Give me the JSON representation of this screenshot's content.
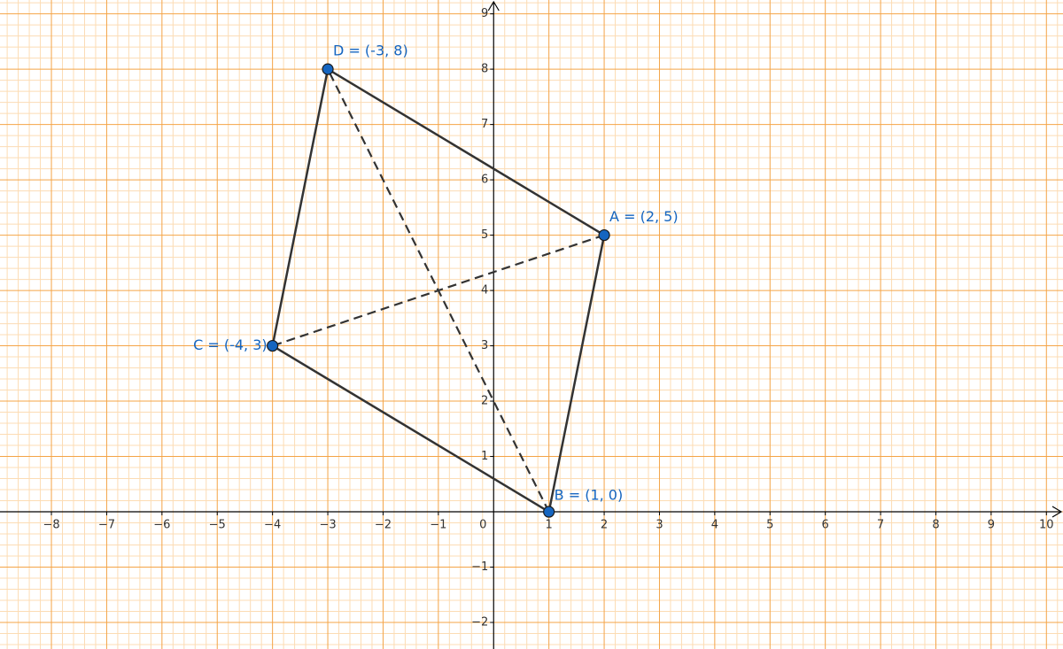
{
  "chart_data": {
    "type": "scatter",
    "xlim": [
      -8.93,
      10.3
    ],
    "ylim": [
      -2.48,
      9.25
    ],
    "xticks": [
      {
        "value": -8,
        "label": "−8"
      },
      {
        "value": -7,
        "label": "−7"
      },
      {
        "value": -6,
        "label": "−6"
      },
      {
        "value": -5,
        "label": "−5"
      },
      {
        "value": -4,
        "label": "−4"
      },
      {
        "value": -3,
        "label": "−3"
      },
      {
        "value": -2,
        "label": "−2"
      },
      {
        "value": -1,
        "label": "−1"
      },
      0,
      1,
      2,
      3,
      4,
      5,
      6,
      7,
      8,
      9,
      10
    ],
    "yticks": [
      {
        "value": -2,
        "label": "−2"
      },
      {
        "value": -1,
        "label": "−1"
      },
      1,
      2,
      3,
      4,
      5,
      6,
      7,
      8,
      9
    ],
    "grid": true,
    "grid_color": "#f4a447",
    "minor_grid_color": "#fcdcb4",
    "point_color": "#1565c0",
    "line_color": "#333333",
    "points": [
      {
        "label": "A = (2, 5)",
        "x": 2,
        "y": 5
      },
      {
        "label": "B = (1, 0)",
        "x": 1,
        "y": 0
      },
      {
        "label": "C = (-4, 3)",
        "x": -4,
        "y": 3
      },
      {
        "label": "D = (-3, 8)",
        "x": -3,
        "y": 8
      }
    ]
  }
}
